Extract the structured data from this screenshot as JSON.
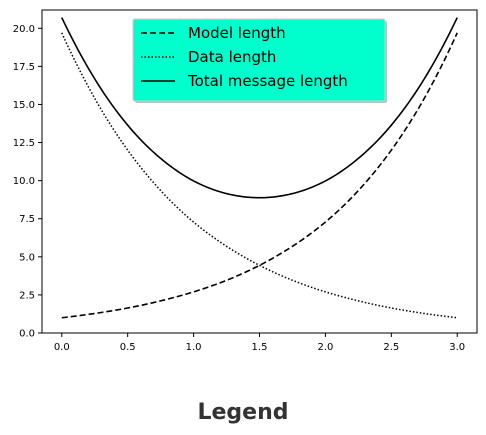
{
  "caption": "Legend",
  "chart_data": {
    "type": "line",
    "title": "",
    "xlabel": "",
    "ylabel": "",
    "xlim": [
      -0.15,
      3.15
    ],
    "ylim": [
      0,
      21.2
    ],
    "x_ticks": [
      0.0,
      0.5,
      1.0,
      1.5,
      2.0,
      2.5,
      3.0
    ],
    "x_tick_labels": [
      "0.0",
      "0.5",
      "1.0",
      "1.5",
      "2.0",
      "2.5",
      "3.0"
    ],
    "y_ticks": [
      0.0,
      2.5,
      5.0,
      7.5,
      10.0,
      12.5,
      15.0,
      17.5,
      20.0
    ],
    "y_tick_labels": [
      "0.0",
      "2.5",
      "5.0",
      "7.5",
      "10.0",
      "12.5",
      "15.0",
      "17.5",
      "20.0"
    ],
    "grid": false,
    "legend": {
      "placement": "upper-center",
      "background": "#00ffcc"
    },
    "x": [
      0.0,
      0.25,
      0.5,
      0.75,
      1.0,
      1.25,
      1.5,
      1.75,
      2.0,
      2.25,
      2.5,
      2.75,
      3.0
    ],
    "series": [
      {
        "name": "Model length",
        "style": "dashed",
        "color": "#000000",
        "values": [
          1.0,
          1.28,
          1.64,
          2.11,
          2.7,
          3.46,
          4.44,
          5.69,
          7.28,
          9.35,
          12.0,
          15.4,
          19.7
        ]
      },
      {
        "name": "Data length",
        "style": "dotted",
        "color": "#000000",
        "values": [
          19.7,
          15.4,
          12.0,
          9.35,
          7.28,
          5.69,
          4.44,
          3.46,
          2.7,
          2.11,
          1.64,
          1.28,
          1.0
        ]
      },
      {
        "name": "Total message length",
        "style": "solid",
        "color": "#000000",
        "values": [
          20.7,
          16.68,
          13.64,
          11.46,
          9.98,
          9.15,
          8.88,
          9.15,
          9.98,
          11.46,
          13.64,
          16.68,
          20.7
        ]
      }
    ]
  }
}
